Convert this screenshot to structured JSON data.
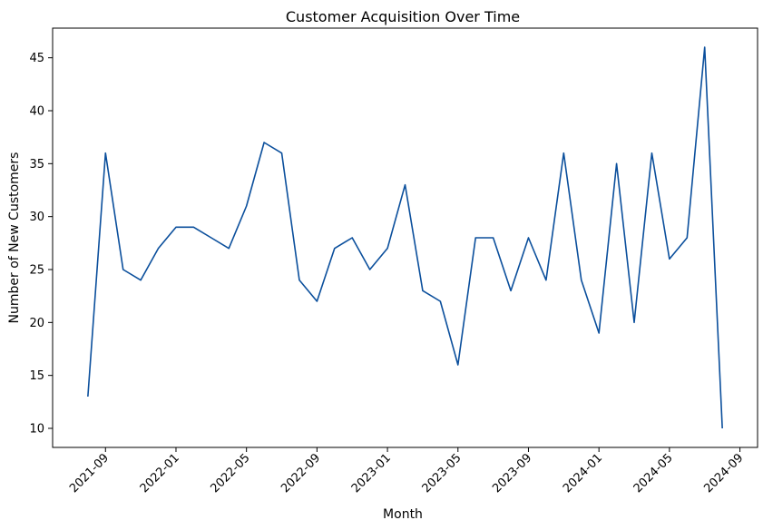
{
  "chart_data": {
    "type": "line",
    "title": "Customer Acquisition Over Time",
    "xlabel": "Month",
    "ylabel": "Number of New Customers",
    "x_start": "2021-08",
    "x_ticks": [
      "2021-09",
      "2022-01",
      "2022-05",
      "2022-09",
      "2023-01",
      "2023-05",
      "2023-09",
      "2024-01",
      "2024-05",
      "2024-09"
    ],
    "y_ticks": [
      10,
      15,
      20,
      25,
      30,
      35,
      40,
      45
    ],
    "xlim": [
      "2021-06",
      "2024-10"
    ],
    "ylim": [
      8.2,
      47.8
    ],
    "grid": false,
    "line_color": "#0b4f9c",
    "series": [
      {
        "x": [
          "2021-08",
          "2021-09",
          "2021-10",
          "2021-11",
          "2021-12",
          "2022-01",
          "2022-02",
          "2022-03",
          "2022-04",
          "2022-05",
          "2022-06",
          "2022-07",
          "2022-08",
          "2022-09",
          "2022-10",
          "2022-11",
          "2022-12",
          "2023-01",
          "2023-02",
          "2023-03",
          "2023-04",
          "2023-05",
          "2023-06",
          "2023-07",
          "2023-08",
          "2023-09",
          "2023-10",
          "2023-11",
          "2023-12",
          "2024-01",
          "2024-02",
          "2024-03",
          "2024-04",
          "2024-05",
          "2024-06",
          "2024-07",
          "2024-08"
        ],
        "values": [
          13,
          36,
          25,
          24,
          27,
          29,
          29,
          28,
          27,
          31,
          37,
          36,
          24,
          22,
          27,
          28,
          25,
          27,
          33,
          23,
          22,
          16,
          28,
          28,
          23,
          28,
          24,
          36,
          24,
          19,
          35,
          20,
          36,
          26,
          28,
          46,
          10
        ]
      }
    ]
  }
}
